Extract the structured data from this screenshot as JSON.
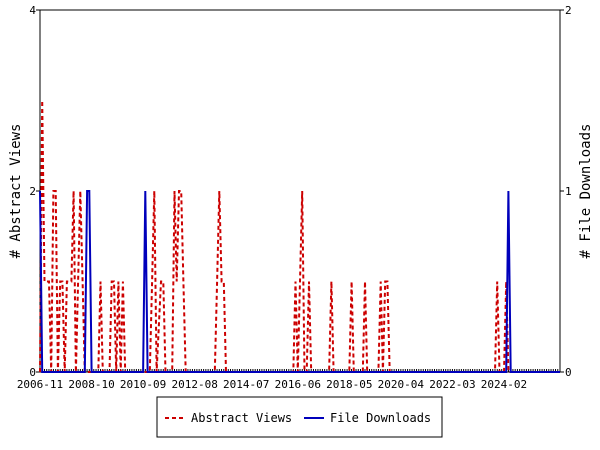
{
  "chart_data": {
    "type": "line",
    "ylabel_left": "# Abstract Views",
    "ylabel_right": "# File Downloads",
    "ylim_left": [
      0,
      4
    ],
    "ylim_right": [
      0,
      2
    ],
    "yticks_left": [
      "0",
      "2",
      "4"
    ],
    "yticks_right": [
      "0",
      "1",
      "2"
    ],
    "x_range": [
      "2006-11",
      "2026-03"
    ],
    "x_tick_labels": [
      "2006-11",
      "2008-10",
      "2010-09",
      "2012-08",
      "2014-07",
      "2016-06",
      "2018-05",
      "2020-04",
      "2022-03",
      "2024-02"
    ],
    "legend": {
      "position": "bottom",
      "items": [
        "Abstract Views",
        "File Downloads"
      ]
    },
    "colors": {
      "abstract_views": "#cc0000",
      "file_downloads": "#0000bb"
    },
    "series": [
      {
        "name": "Abstract Views",
        "axis": "left",
        "style": "dashed",
        "points": [
          [
            "2006-11",
            0
          ],
          [
            "2006-12",
            3
          ],
          [
            "2007-01",
            1
          ],
          [
            "2007-02",
            1
          ],
          [
            "2007-03",
            1
          ],
          [
            "2007-04",
            0
          ],
          [
            "2007-05",
            2
          ],
          [
            "2007-06",
            2
          ],
          [
            "2007-07",
            0
          ],
          [
            "2007-08",
            1
          ],
          [
            "2007-09",
            1
          ],
          [
            "2007-10",
            0
          ],
          [
            "2007-11",
            1
          ],
          [
            "2007-12",
            1
          ],
          [
            "2008-01",
            1
          ],
          [
            "2008-02",
            2
          ],
          [
            "2008-03",
            0
          ],
          [
            "2008-04",
            1
          ],
          [
            "2008-05",
            2
          ],
          [
            "2008-06",
            1
          ],
          [
            "2008-07",
            0
          ],
          [
            "2008-08",
            0
          ],
          [
            "2009-01",
            0
          ],
          [
            "2009-02",
            1
          ],
          [
            "2009-03",
            0
          ],
          [
            "2009-06",
            0
          ],
          [
            "2009-07",
            1
          ],
          [
            "2009-08",
            1
          ],
          [
            "2009-09",
            0
          ],
          [
            "2009-10",
            1
          ],
          [
            "2009-11",
            0
          ],
          [
            "2009-12",
            1
          ],
          [
            "2010-01",
            0
          ],
          [
            "2010-09",
            0
          ],
          [
            "2010-12",
            0
          ],
          [
            "2011-01",
            1
          ],
          [
            "2011-02",
            2
          ],
          [
            "2011-03",
            0
          ],
          [
            "2011-05",
            1
          ],
          [
            "2011-06",
            1
          ],
          [
            "2011-07",
            0
          ],
          [
            "2011-10",
            0
          ],
          [
            "2011-11",
            2
          ],
          [
            "2011-12",
            1
          ],
          [
            "2012-01",
            2
          ],
          [
            "2012-02",
            2
          ],
          [
            "2012-03",
            1
          ],
          [
            "2012-04",
            0
          ],
          [
            "2013-05",
            0
          ],
          [
            "2013-06",
            1
          ],
          [
            "2013-07",
            2
          ],
          [
            "2013-08",
            1
          ],
          [
            "2013-09",
            1
          ],
          [
            "2013-10",
            0
          ],
          [
            "2016-04",
            0
          ],
          [
            "2016-05",
            1
          ],
          [
            "2016-06",
            0
          ],
          [
            "2016-07",
            1
          ],
          [
            "2016-08",
            2
          ],
          [
            "2016-09",
            0
          ],
          [
            "2016-10",
            0
          ],
          [
            "2016-11",
            1
          ],
          [
            "2016-12",
            0
          ],
          [
            "2017-08",
            0
          ],
          [
            "2017-09",
            1
          ],
          [
            "2017-10",
            0
          ],
          [
            "2018-05",
            0
          ],
          [
            "2018-06",
            1
          ],
          [
            "2018-07",
            0
          ],
          [
            "2018-11",
            0
          ],
          [
            "2018-12",
            1
          ],
          [
            "2019-01",
            0
          ],
          [
            "2019-06",
            0
          ],
          [
            "2019-07",
            1
          ],
          [
            "2019-08",
            0
          ],
          [
            "2019-09",
            1
          ],
          [
            "2019-10",
            1
          ],
          [
            "2019-11",
            0
          ],
          [
            "2023-10",
            0
          ],
          [
            "2023-11",
            1
          ],
          [
            "2023-12",
            0
          ],
          [
            "2024-02",
            0
          ],
          [
            "2024-03",
            1
          ],
          [
            "2024-04",
            0
          ],
          [
            "2026-03",
            0
          ]
        ]
      },
      {
        "name": "File Downloads",
        "axis": "right",
        "style": "solid",
        "points": [
          [
            "2006-11",
            1
          ],
          [
            "2006-12",
            0
          ],
          [
            "2008-07",
            0
          ],
          [
            "2008-08",
            1
          ],
          [
            "2008-09",
            1
          ],
          [
            "2008-10",
            0
          ],
          [
            "2010-09",
            0
          ],
          [
            "2010-10",
            1
          ],
          [
            "2010-11",
            0
          ],
          [
            "2024-03",
            0
          ],
          [
            "2024-04",
            1
          ],
          [
            "2024-05",
            0
          ],
          [
            "2026-03",
            0
          ]
        ]
      }
    ]
  }
}
